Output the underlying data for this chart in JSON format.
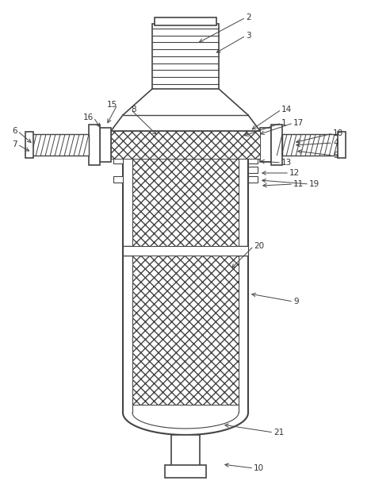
{
  "bg_color": "#ffffff",
  "lc": "#444444",
  "fig_width": 4.68,
  "fig_height": 6.25,
  "dpi": 100
}
